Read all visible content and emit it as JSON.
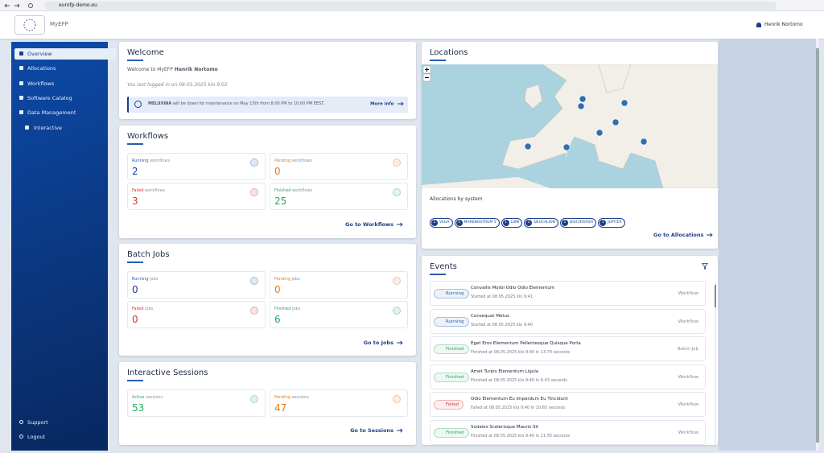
{
  "browser": {
    "url": "eurofp-demo.eu"
  },
  "header": {
    "brand": "MyEFP",
    "user": "Henrik Nortomo"
  },
  "sidebar": {
    "menu": [
      "Overview",
      "Allocations",
      "Workflows",
      "Software Catalog",
      "Data Management",
      "Interactive"
    ],
    "footer": [
      "Support",
      "Logout"
    ]
  },
  "welcome": {
    "title": "Welcome",
    "greeting": "Welcome to MyEFP",
    "user": "Henrik Nortomo",
    "last_login": "You last logged in on 08.05.2025 klo 9:02",
    "notice_system": "MELUXINA",
    "notice": "will be down for maintenance on May 15th from 8:00 PM to 10:00 PM EEST.",
    "notice_link": "More info"
  },
  "workflows": {
    "title": "Workflows",
    "tiles": [
      {
        "status": "Running",
        "label": "workflows",
        "value": "2"
      },
      {
        "status": "Pending",
        "label": "workflows",
        "value": "0"
      },
      {
        "status": "Failed",
        "label": "workflows",
        "value": "3"
      },
      {
        "status": "Finished",
        "label": "workflows",
        "value": "25"
      }
    ],
    "link": "Go to Workflows"
  },
  "batch_jobs": {
    "title": "Batch Jobs",
    "tiles": [
      {
        "status": "Running",
        "label": "jobs",
        "value": "0"
      },
      {
        "status": "Pending",
        "label": "jobs",
        "value": "0"
      },
      {
        "status": "Failed",
        "label": "jobs",
        "value": "0"
      },
      {
        "status": "Finished",
        "label": "jobs",
        "value": "6"
      }
    ],
    "link": "Go to Jobs"
  },
  "sessions": {
    "title": "Interactive Sessions",
    "tiles": [
      {
        "status": "Active",
        "label": "sessions",
        "value": "53"
      },
      {
        "status": "Pending",
        "label": "sessions",
        "value": "47"
      }
    ],
    "link": "Go to Sessions"
  },
  "locations": {
    "title": "Locations",
    "subtitle": "Allocations by system",
    "systems": [
      {
        "count": "2",
        "name": "VEGA"
      },
      {
        "count": "3",
        "name": "MARENOSTRUM 5"
      },
      {
        "count": "1",
        "name": "LUMI"
      },
      {
        "count": "2",
        "name": "DEUCALION"
      },
      {
        "count": "1",
        "name": "DISCOVERER"
      },
      {
        "count": "1",
        "name": "JUPITER"
      }
    ],
    "link": "Go to Allocations"
  },
  "events": {
    "title": "Events",
    "items": [
      {
        "status": "Running",
        "name": "Convallis Morbi Odio Odio Elementum",
        "detail": "Started at 08.05.2025 klo 9:41",
        "kind": "Workflow"
      },
      {
        "status": "Running",
        "name": "Consequat Metus",
        "detail": "Started at 08.05.2025 klo 9:40",
        "kind": "Workflow"
      },
      {
        "status": "Finished",
        "name": "Eget Eros Elementum Pellentesque Quisque Porta",
        "detail": "Finished at 08.05.2025 klo 9:40 in 13.74 seconds",
        "kind": "Batch Job"
      },
      {
        "status": "Finished",
        "name": "Amet Turpis Elementum Ligula",
        "detail": "Finished at 08.05.2025 klo 9:40 in 8.43 seconds",
        "kind": "Workflow"
      },
      {
        "status": "Failed",
        "name": "Odio Elementum Eu Imperdum Eu Tincidunt",
        "detail": "Failed at 08.05.2025 klo 9:40 in 10.65 seconds",
        "kind": "Workflow"
      },
      {
        "status": "Finished",
        "name": "Sodales Scelerisque Mauris Sit",
        "detail": "Finished at 08.05.2025 klo 9:40 in 11.55 seconds",
        "kind": "Workflow"
      }
    ]
  }
}
